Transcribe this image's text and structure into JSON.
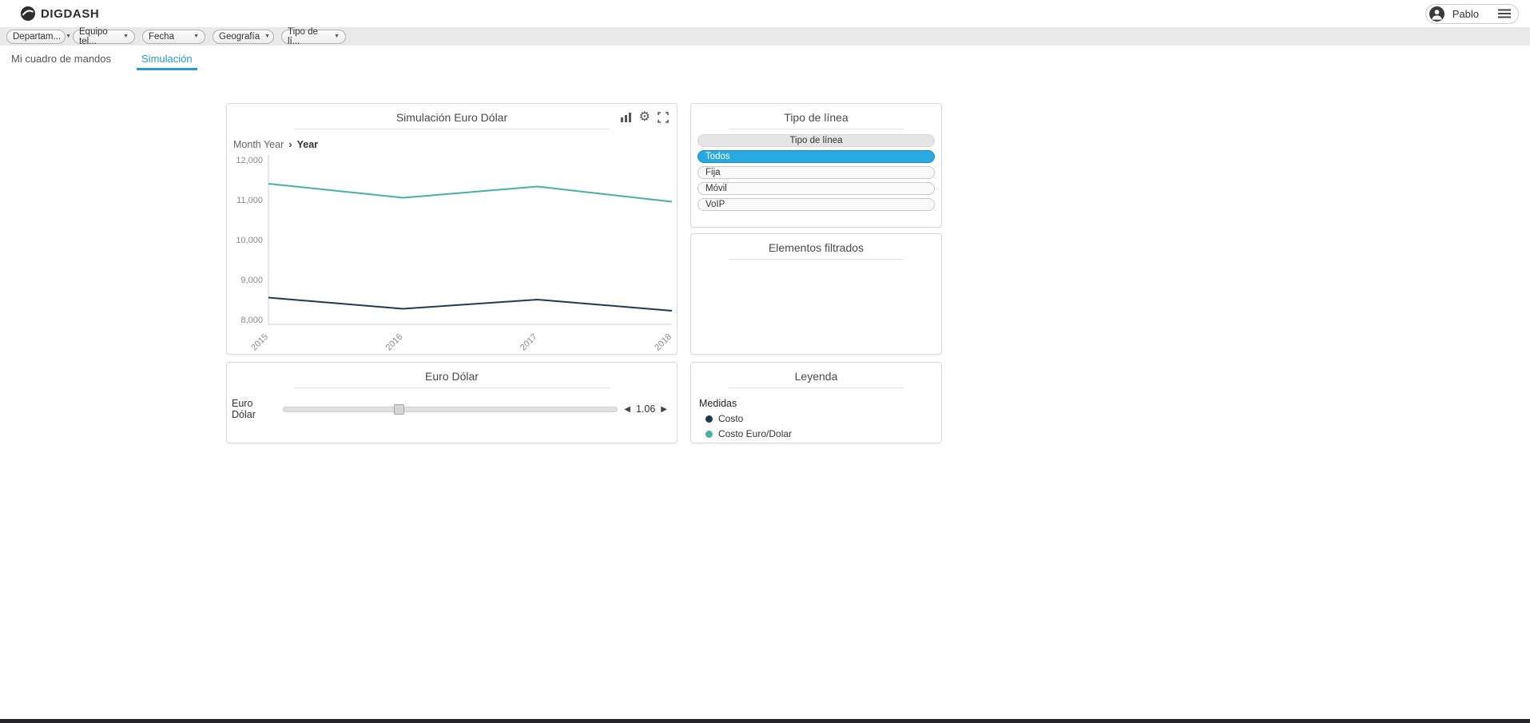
{
  "header": {
    "logo_text": "DIGDASH",
    "user_name": "Pablo"
  },
  "filters": [
    {
      "label": "Departam..."
    },
    {
      "label": "Equipo tel..."
    },
    {
      "label": "Fecha"
    },
    {
      "label": "Geografía"
    },
    {
      "label": "Tipo de lí..."
    }
  ],
  "tabs": [
    {
      "label": "Mi cuadro de mandos",
      "active": false
    },
    {
      "label": "Simulación",
      "active": true
    }
  ],
  "simulation_card": {
    "title": "Simulación Euro Dólar",
    "breadcrumb": {
      "parent": "Month Year",
      "current": "Year"
    }
  },
  "chart_data": {
    "type": "line",
    "title": "Simulación Euro Dólar",
    "x": [
      "2015",
      "2016",
      "2017",
      "2018"
    ],
    "series": [
      {
        "name": "Costo",
        "color": "#1f3a52",
        "values": [
          8550,
          8270,
          8500,
          8220
        ]
      },
      {
        "name": "Costo Euro/Dolar",
        "color": "#45b29d",
        "values": [
          11400,
          11050,
          11330,
          10950
        ]
      }
    ],
    "ylim": [
      8000,
      12000
    ],
    "yticks": [
      8000,
      9000,
      10000,
      11000,
      12000
    ],
    "grid": false,
    "legend_position": "separate-card"
  },
  "tipo_linea_card": {
    "title": "Tipo de línea",
    "list_header": "Tipo de línea",
    "items": [
      {
        "label": "Todos",
        "selected": true
      },
      {
        "label": "Fija",
        "selected": false
      },
      {
        "label": "Móvil",
        "selected": false
      },
      {
        "label": "VoIP",
        "selected": false
      }
    ]
  },
  "filtered_card": {
    "title": "Elementos filtrados"
  },
  "euro_card": {
    "title": "Euro Dólar",
    "slider_label": "Euro Dólar",
    "value": "1.06"
  },
  "legend_card": {
    "title": "Leyenda",
    "group_label": "Medidas",
    "entries": [
      {
        "label": "Costo",
        "color": "#1f3a52"
      },
      {
        "label": "Costo Euro/Dolar",
        "color": "#45b29d"
      }
    ]
  },
  "icons": {
    "chevron_down": "▼",
    "gear": "⚙",
    "breadcrumb_chevron": "›",
    "arrow_left": "◀",
    "arrow_right": "▶"
  },
  "colors": {
    "accent": "#2699d6",
    "selected": "#29a9e0",
    "selected_border": "#1b8fc4",
    "bottom_bar": "#26222e"
  }
}
